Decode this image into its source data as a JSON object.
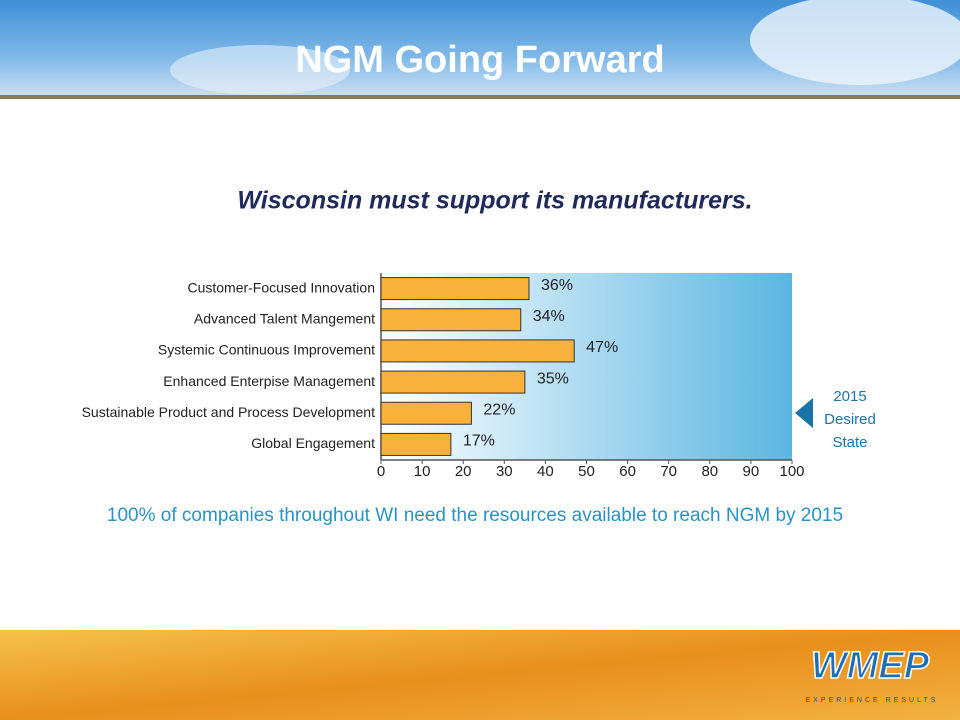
{
  "slide": {
    "title": "NGM Going Forward",
    "subtitle": "Wisconsin must support its manufacturers.",
    "footnote": "100% of companies throughout WI need the resources available to reach NGM by 2015",
    "logo": "WMEP",
    "tagline": "EXPERIENCE RESULTS"
  },
  "chart_data": {
    "type": "bar",
    "horizontal": true,
    "categories": [
      "Customer-Focused Innovation",
      "Advanced Talent Mangement",
      "Systemic Continuous Improvement",
      "Enhanced Enterpise Management",
      "Sustainable Product and Process Development",
      "Global Engagement"
    ],
    "values": [
      36,
      34,
      47,
      35,
      22,
      17
    ],
    "value_labels": [
      "36%",
      "34%",
      "47%",
      "35%",
      "22%",
      "17%"
    ],
    "color": "#f8b23c",
    "xlim": [
      0,
      100
    ],
    "xticks": [
      0,
      10,
      20,
      30,
      40,
      50,
      60,
      70,
      80,
      90,
      100
    ],
    "annotation": "2015 Desired State"
  }
}
